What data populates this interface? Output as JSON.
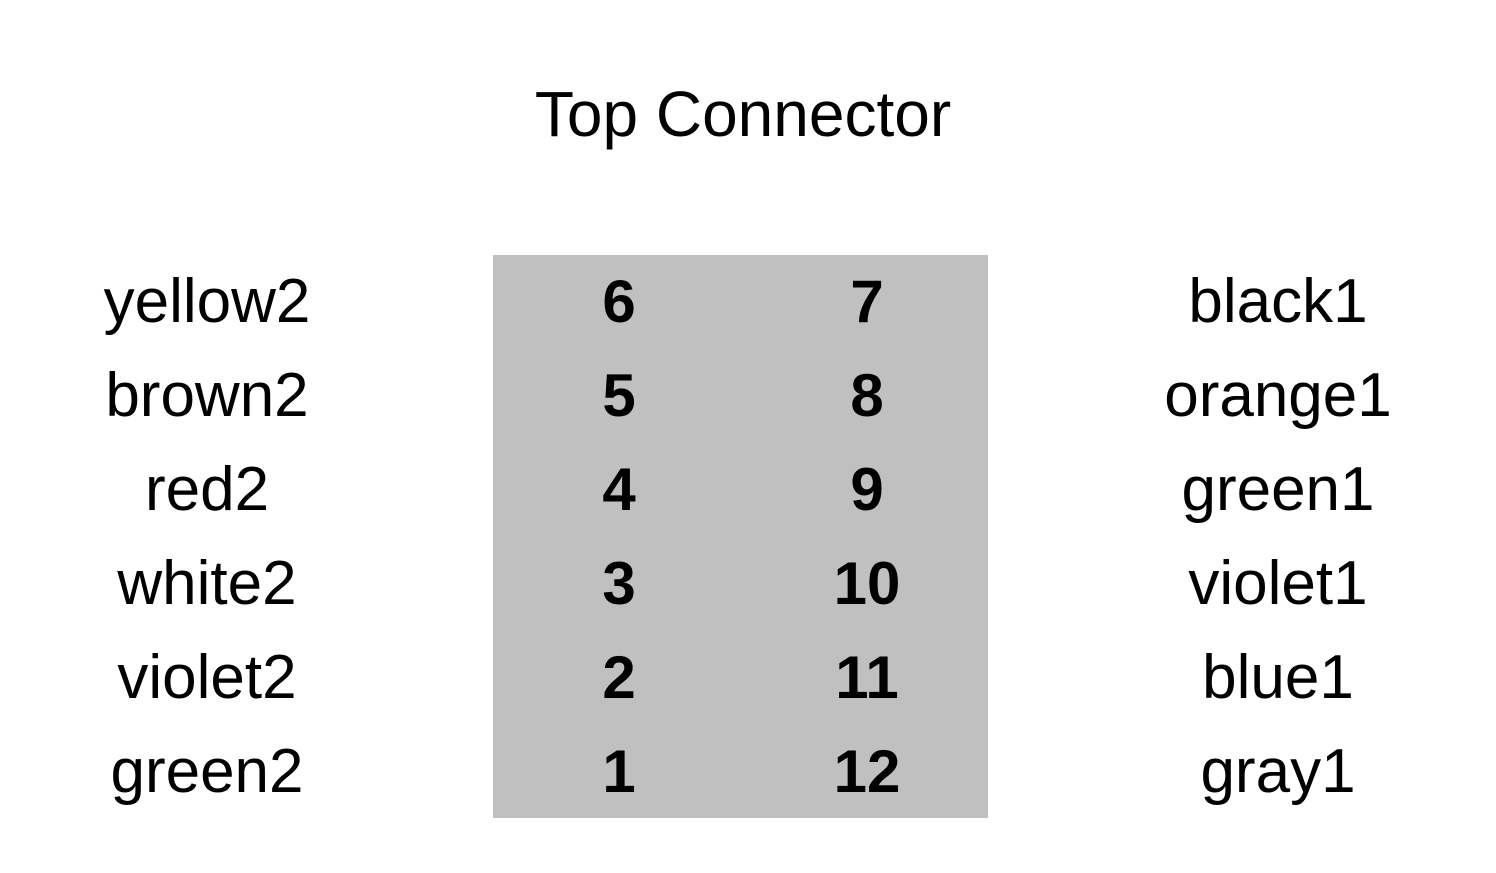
{
  "title": "Top Connector",
  "block_color": "#c0c0c0",
  "left_labels": [
    "yellow2",
    "brown2",
    "red2",
    "white2",
    "violet2",
    "green2"
  ],
  "pins_left": [
    "6",
    "5",
    "4",
    "3",
    "2",
    "1"
  ],
  "pins_right": [
    "7",
    "8",
    "9",
    "10",
    "11",
    "12"
  ],
  "right_labels": [
    "black1",
    "orange1",
    "green1",
    "violet1",
    "blue1",
    "gray1"
  ]
}
